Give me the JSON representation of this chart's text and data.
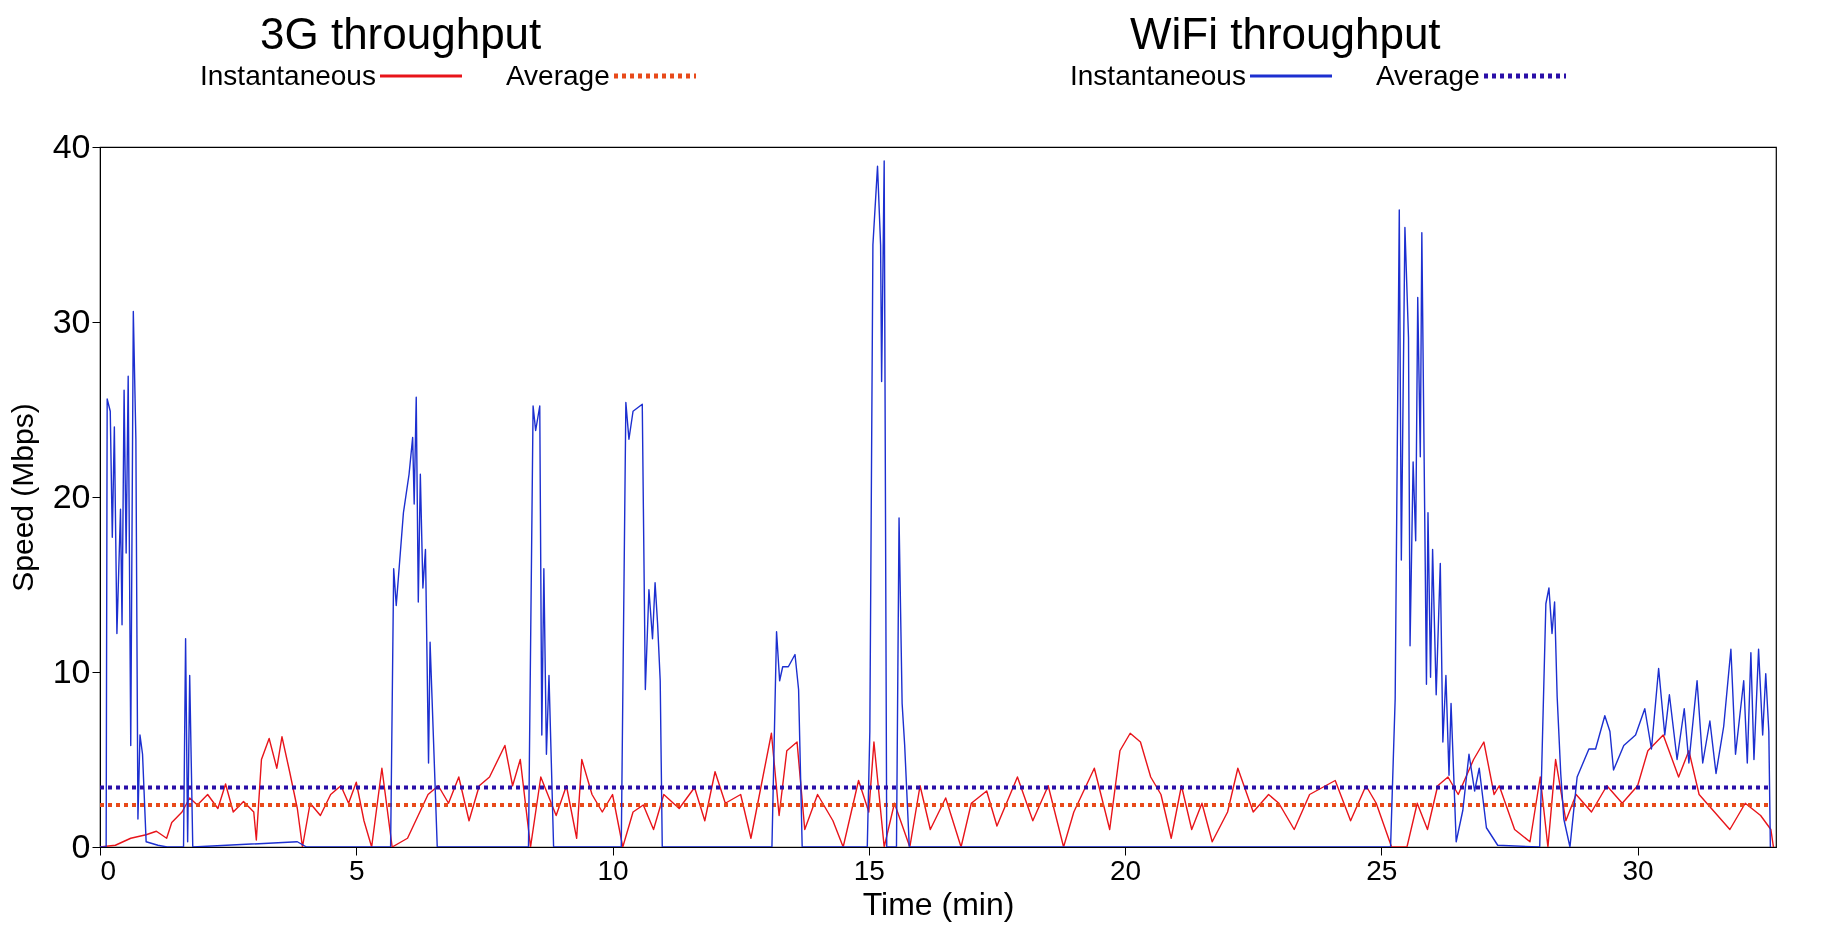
{
  "chart_data": {
    "type": "line",
    "xlabel": "Time (min)",
    "ylabel": "Speed (Mbps)",
    "annotations": [
      "3G throughput",
      "WiFi throughput"
    ],
    "xlim": [
      0,
      32.7
    ],
    "xticks": [
      0,
      5,
      10,
      15,
      20,
      25,
      30
    ],
    "ylim": [
      0,
      40
    ],
    "yticks": [
      0,
      10,
      20,
      30,
      40
    ],
    "grid": false,
    "legend": "top",
    "marker": "none",
    "series": [
      {
        "name": "Instantaneous",
        "color": "#e8141a",
        "line_style": "solid",
        "x": [
          0,
          0.3,
          0.6,
          0.9,
          1.1,
          1.3,
          1.4,
          1.6,
          1.75,
          1.9,
          2.1,
          2.3,
          2.45,
          2.6,
          2.8,
          3.0,
          3.05,
          3.15,
          3.3,
          3.45,
          3.55,
          3.7,
          3.85,
          3.95,
          4.1,
          4.3,
          4.5,
          4.7,
          4.85,
          5.0,
          5.15,
          5.3,
          5.5,
          5.7,
          6.0,
          6.4,
          6.6,
          6.8,
          7.0,
          7.2,
          7.4,
          7.6,
          7.9,
          8.05,
          8.2,
          8.4,
          8.6,
          8.9,
          9.1,
          9.3,
          9.4,
          9.6,
          9.8,
          10.0,
          10.2,
          10.4,
          10.6,
          10.8,
          11.0,
          11.3,
          11.6,
          11.8,
          12.0,
          12.2,
          12.5,
          12.7,
          12.9,
          13.1,
          13.25,
          13.4,
          13.6,
          13.75,
          14.0,
          14.3,
          14.5,
          14.8,
          15.0,
          15.1,
          15.3,
          15.5,
          15.8,
          16.0,
          16.2,
          16.5,
          16.8,
          17.0,
          17.3,
          17.5,
          17.9,
          18.2,
          18.5,
          18.8,
          19.0,
          19.4,
          19.7,
          19.9,
          20.1,
          20.3,
          20.5,
          20.7,
          20.9,
          21.1,
          21.3,
          21.5,
          21.7,
          22.0,
          22.2,
          22.5,
          22.8,
          23.0,
          23.3,
          23.6,
          24.1,
          24.4,
          24.7,
          24.9,
          25.2,
          25.5,
          25.7,
          25.9,
          26.1,
          26.3,
          26.5,
          26.8,
          27.0,
          27.2,
          27.3,
          27.6,
          27.9,
          28.1,
          28.25,
          28.4,
          28.6,
          28.8,
          29.1,
          29.4,
          29.7,
          30.0,
          30.2,
          30.5,
          30.8,
          31.0,
          31.2,
          31.5,
          31.8,
          32.1,
          32.4,
          32.6,
          32.65
        ],
        "values": [
          0,
          0.1,
          0.5,
          0.7,
          0.9,
          0.5,
          1.4,
          2.0,
          2.8,
          2.4,
          3.0,
          2.2,
          3.6,
          2.0,
          2.6,
          2.0,
          0.4,
          5.0,
          6.2,
          4.5,
          6.3,
          4.3,
          2.2,
          0,
          2.5,
          1.8,
          3.0,
          3.5,
          2.5,
          3.7,
          1.5,
          0,
          4.5,
          0,
          0.5,
          3.0,
          3.5,
          2.5,
          4.0,
          1.5,
          3.5,
          4.0,
          5.8,
          3.5,
          5.0,
          0,
          4.0,
          1.8,
          3.5,
          0.5,
          5.0,
          3.0,
          2.0,
          3.0,
          0,
          2.0,
          2.4,
          1.0,
          3.0,
          2.2,
          3.4,
          1.5,
          4.3,
          2.5,
          3.0,
          0.5,
          3.5,
          6.5,
          1.8,
          5.5,
          6.0,
          1.0,
          3.0,
          1.5,
          0,
          3.8,
          2.0,
          6.0,
          0,
          2.5,
          0,
          3.5,
          1.0,
          2.8,
          0,
          2.5,
          3.2,
          1.2,
          4.0,
          1.5,
          3.5,
          0,
          2.0,
          4.5,
          1.0,
          5.5,
          6.5,
          6.0,
          4.0,
          3.0,
          0.5,
          3.5,
          1.0,
          2.5,
          0.3,
          2.0,
          4.5,
          2.0,
          3.0,
          2.5,
          1.0,
          3.0,
          3.8,
          1.5,
          3.5,
          2.5,
          0,
          0,
          2.5,
          1.0,
          3.5,
          4.0,
          3.0,
          5.0,
          6.0,
          3.0,
          3.5,
          1.0,
          0.3,
          4.0,
          0,
          5.0,
          1.5,
          3.0,
          2.0,
          3.5,
          2.5,
          3.5,
          5.5,
          6.4,
          4.0,
          5.5,
          3.0,
          2.0,
          1.0,
          2.5,
          1.8,
          1.0,
          0
        ]
      },
      {
        "name": "Average",
        "color": "#e84a1a",
        "line_style": "dotted",
        "x": [
          0,
          32.6
        ],
        "values": [
          2.4,
          2.4
        ]
      },
      {
        "name": "Instantaneous",
        "color": "#1c2fd0",
        "line_style": "solid",
        "x": [
          0,
          0.12,
          0.14,
          0.2,
          0.24,
          0.28,
          0.33,
          0.4,
          0.43,
          0.47,
          0.51,
          0.55,
          0.6,
          0.65,
          0.7,
          0.74,
          0.78,
          0.83,
          0.9,
          1.13,
          1.31,
          1.63,
          1.67,
          1.71,
          1.75,
          1.81,
          3.85,
          4.03,
          5.67,
          5.73,
          5.78,
          5.92,
          6.03,
          6.1,
          6.13,
          6.17,
          6.21,
          6.25,
          6.3,
          6.35,
          6.41,
          6.44,
          6.58,
          8.36,
          8.45,
          8.5,
          8.58,
          8.62,
          8.66,
          8.71,
          8.76,
          8.85,
          10.17,
          10.26,
          10.32,
          10.4,
          10.58,
          10.64,
          10.71,
          10.78,
          10.83,
          10.88,
          10.93,
          10.97,
          13.11,
          13.2,
          13.26,
          13.32,
          13.43,
          13.56,
          13.63,
          13.7,
          14.97,
          15.02,
          15.08,
          15.17,
          15.23,
          15.25,
          15.3,
          15.35,
          15.54,
          15.59,
          15.65,
          15.7,
          15.79,
          25.18,
          25.27,
          25.35,
          25.39,
          25.46,
          25.53,
          25.56,
          25.62,
          25.67,
          25.71,
          25.76,
          25.79,
          25.83,
          25.88,
          25.91,
          25.96,
          26.0,
          26.07,
          26.15,
          26.2,
          26.26,
          26.32,
          26.36,
          26.46,
          26.59,
          26.71,
          26.82,
          26.91,
          27.05,
          27.27,
          28.09,
          28.21,
          28.27,
          28.33,
          28.38,
          28.43,
          28.5,
          28.56,
          28.68,
          28.82,
          29.05,
          29.18,
          29.36,
          29.46,
          29.53,
          29.73,
          29.96,
          30.14,
          30.27,
          30.41,
          30.53,
          30.62,
          30.77,
          30.91,
          31.0,
          31.16,
          31.27,
          31.41,
          31.53,
          31.68,
          31.82,
          31.91,
          32.07,
          32.14,
          32.21,
          32.27,
          32.36,
          32.44,
          32.5,
          32.56,
          32.59
        ],
        "values": [
          0,
          0,
          25.6,
          24.9,
          17.7,
          24.0,
          12.2,
          19.3,
          12.7,
          26.1,
          16.8,
          26.9,
          5.8,
          30.6,
          23.3,
          1.6,
          6.4,
          5.3,
          0.3,
          0.1,
          0,
          0,
          11.9,
          0.3,
          9.8,
          0,
          0.3,
          0,
          0,
          15.9,
          13.8,
          19.1,
          21.3,
          23.4,
          19.6,
          25.7,
          14.0,
          21.3,
          14.8,
          17.0,
          4.8,
          11.7,
          0,
          0,
          25.2,
          23.8,
          25.2,
          6.4,
          15.9,
          5.3,
          9.8,
          0,
          0,
          25.4,
          23.3,
          24.9,
          25.3,
          9.0,
          14.7,
          11.9,
          15.1,
          12.7,
          9.5,
          0,
          0,
          12.3,
          9.5,
          10.3,
          10.3,
          11.0,
          9.0,
          0,
          0,
          6.6,
          34.4,
          38.9,
          34.4,
          26.6,
          39.2,
          0,
          0,
          18.8,
          8.2,
          5.8,
          0,
          0,
          8.5,
          36.4,
          16.4,
          35.4,
          29.1,
          11.5,
          22.0,
          17.5,
          31.4,
          22.3,
          35.1,
          23.6,
          9.3,
          19.1,
          9.7,
          17.0,
          8.7,
          16.2,
          6.0,
          9.8,
          4.1,
          8.2,
          0.3,
          2.1,
          5.3,
          3.2,
          4.5,
          1.1,
          0.1,
          0,
          13.9,
          14.8,
          12.2,
          14.0,
          8.6,
          4.2,
          1.6,
          0,
          4.0,
          5.6,
          5.6,
          7.5,
          6.6,
          4.4,
          5.8,
          6.4,
          7.9,
          5.6,
          10.2,
          6.4,
          8.7,
          5.0,
          7.9,
          4.8,
          9.5,
          4.8,
          7.2,
          4.2,
          6.9,
          11.3,
          5.3,
          9.5,
          4.8,
          11.1,
          5.0,
          11.3,
          6.4,
          9.9,
          6.6,
          0
        ]
      },
      {
        "name": "Average",
        "color": "#2a0fa8",
        "line_style": "dotted",
        "x": [
          0,
          32.6
        ],
        "values": [
          3.4,
          3.4
        ]
      }
    ]
  }
}
